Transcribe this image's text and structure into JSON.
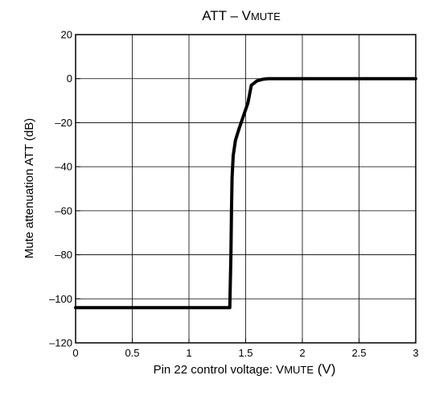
{
  "chart_data": {
    "type": "line",
    "title_main": "ATT – V",
    "title_sub": "MUTE",
    "xlabel_main": "Pin 22 control voltage: V",
    "xlabel_sub": "MUTE",
    "xlabel_unit": " (V)",
    "ylabel": "Mute attenuation ATT    (dB)",
    "xlim": [
      0,
      3
    ],
    "ylim": [
      -120,
      20
    ],
    "xticks": [
      0,
      0.5,
      1,
      1.5,
      2,
      2.5,
      3
    ],
    "xtick_labels": [
      "0",
      "0.5",
      "1",
      "1.5",
      "2",
      "2.5",
      "3"
    ],
    "yticks": [
      20,
      0,
      -20,
      -40,
      -60,
      -80,
      -100,
      -120
    ],
    "ytick_labels": [
      "20",
      "0",
      "–20",
      "–40",
      "–60",
      "–80",
      "–100",
      "–120"
    ],
    "grid": true,
    "series": [
      {
        "color": "#000000",
        "x": [
          0,
          1.36,
          1.37,
          1.375,
          1.38,
          1.39,
          1.41,
          1.44,
          1.48,
          1.52,
          1.55,
          1.6,
          1.65,
          1.7,
          3
        ],
        "y": [
          -104,
          -104,
          -80,
          -60,
          -45,
          -35,
          -28,
          -23,
          -17,
          -11,
          -3,
          -1,
          -0.3,
          0,
          0
        ]
      }
    ]
  }
}
